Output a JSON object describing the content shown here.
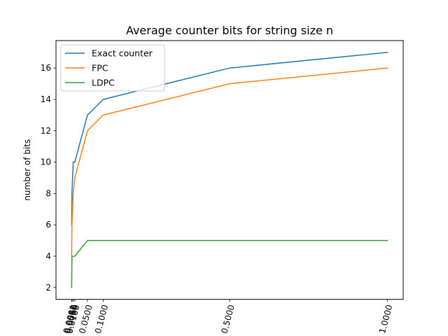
{
  "chart_data": {
    "type": "line",
    "title": "Average counter bits for string size n",
    "xlabel": "",
    "ylabel": "number of bits",
    "xlim": [
      -0.0495,
      1.0495
    ],
    "ylim": [
      1.25,
      17.75
    ],
    "x_ticks": [
      0.0001,
      0.001,
      0.005,
      0.01,
      0.05,
      0.1,
      0.5,
      1.0
    ],
    "x_tick_labels": [
      "0.0001",
      "0.0010",
      "0.0050",
      "0.0100",
      "0.0500",
      "0.1000",
      "0.5000",
      "1.0000"
    ],
    "y_ticks": [
      2,
      4,
      6,
      8,
      10,
      12,
      14,
      16
    ],
    "y_tick_labels": [
      "2",
      "4",
      "6",
      "8",
      "10",
      "12",
      "14",
      "16"
    ],
    "x": [
      0.0001,
      0.001,
      0.005,
      0.01,
      0.05,
      0.1,
      0.5,
      1.0
    ],
    "series": [
      {
        "name": "Exact counter",
        "color": "#1f77b4",
        "values": [
          6,
          8,
          10,
          10,
          13,
          14,
          16,
          17
        ]
      },
      {
        "name": "FPC",
        "color": "#ff7f0e",
        "values": [
          4,
          6,
          8,
          9,
          12,
          13,
          15,
          16
        ]
      },
      {
        "name": "LDPC",
        "color": "#2ca02c",
        "values": [
          2,
          4,
          4,
          4,
          5,
          5,
          5,
          5
        ]
      }
    ],
    "grid": false,
    "legend": "upper left"
  }
}
